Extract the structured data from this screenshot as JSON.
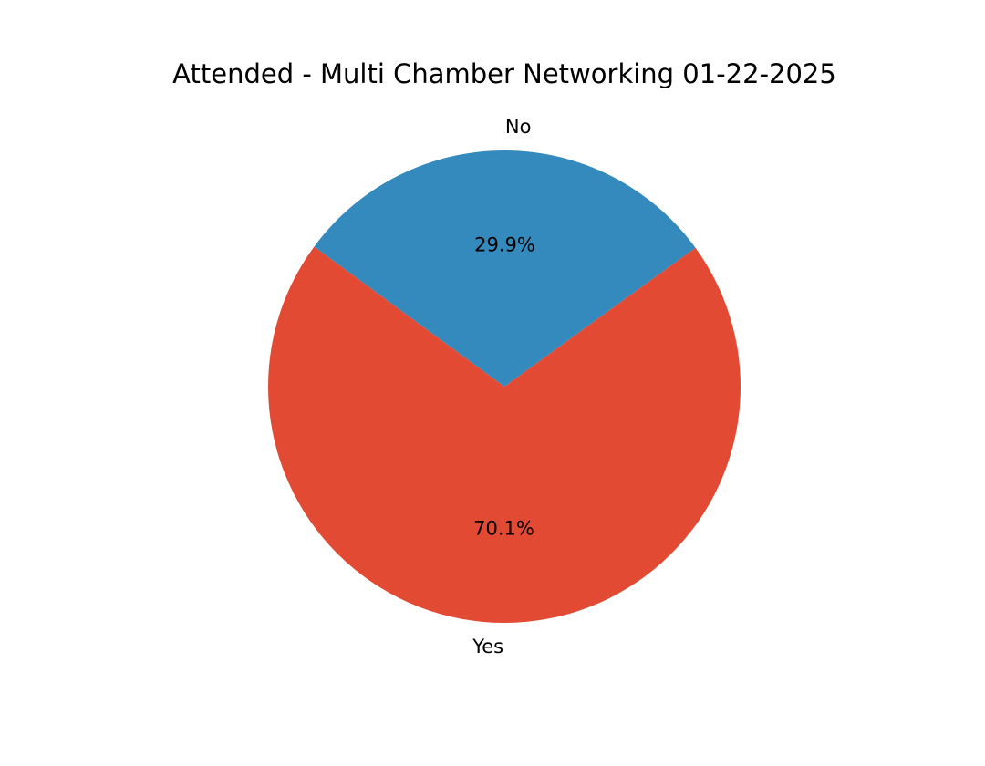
{
  "chart_data": {
    "type": "pie",
    "title": "Attended - Multi Chamber Networking 01-22-2025",
    "slices": [
      {
        "label": "No",
        "value": 29.9,
        "pct_label": "29.9%",
        "color": "#348abd"
      },
      {
        "label": "Yes",
        "value": 70.1,
        "pct_label": "70.1%",
        "color": "#e24a33"
      }
    ],
    "start_angle_deg": 36,
    "direction": "counterclockwise",
    "legend": "none"
  }
}
